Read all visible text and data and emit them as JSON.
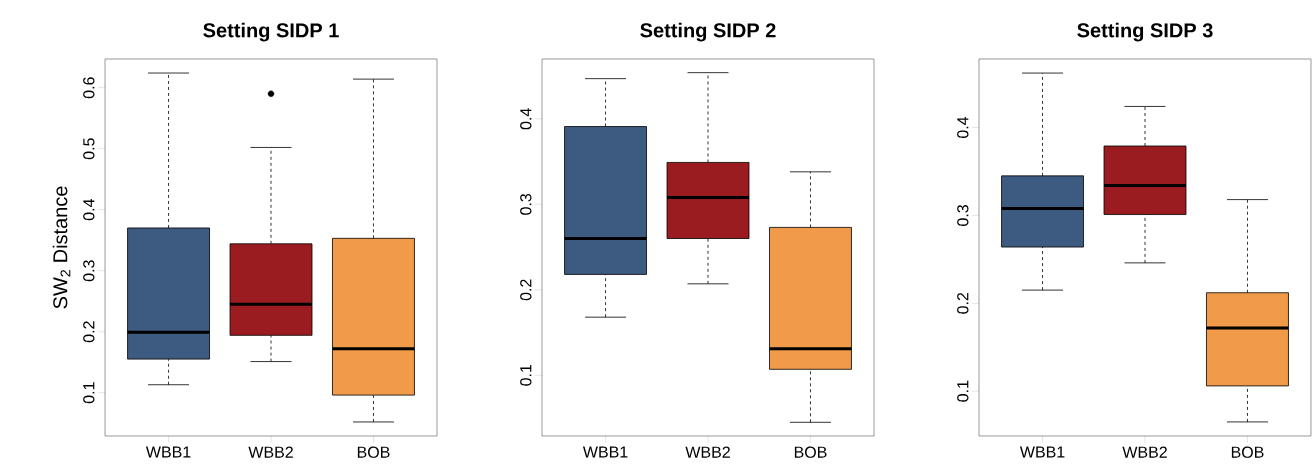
{
  "chart_data": [
    {
      "type": "box",
      "title": "Setting SIDP 1",
      "ylabel": "SW$_{2}$  Distance",
      "categories": [
        "WBB1",
        "WBB2",
        "BOB"
      ],
      "colors": [
        "#3d5a80",
        "#9b1c20",
        "#f09a4a"
      ],
      "boxes": [
        {
          "low": 0.113,
          "q1": 0.155,
          "median": 0.199,
          "q3": 0.37,
          "high": 0.624
        },
        {
          "low": 0.151,
          "q1": 0.194,
          "median": 0.245,
          "q3": 0.344,
          "high": 0.502,
          "outliers": [
            0.59
          ]
        },
        {
          "low": 0.052,
          "q1": 0.096,
          "median": 0.172,
          "q3": 0.353,
          "high": 0.614
        }
      ],
      "ylim": [
        0.029,
        0.647
      ],
      "yticks": [
        0.1,
        0.2,
        0.3,
        0.4,
        0.5,
        0.6
      ]
    },
    {
      "type": "box",
      "title": "Setting SIDP 2",
      "categories": [
        "WBB1",
        "WBB2",
        "BOB"
      ],
      "colors": [
        "#3d5a80",
        "#9b1c20",
        "#f09a4a"
      ],
      "boxes": [
        {
          "low": 0.168,
          "q1": 0.218,
          "median": 0.26,
          "q3": 0.391,
          "high": 0.447
        },
        {
          "low": 0.207,
          "q1": 0.26,
          "median": 0.308,
          "q3": 0.349,
          "high": 0.454
        },
        {
          "low": 0.045,
          "q1": 0.107,
          "median": 0.131,
          "q3": 0.273,
          "high": 0.338
        }
      ],
      "ylim": [
        0.029,
        0.47
      ],
      "yticks": [
        0.1,
        0.2,
        0.3,
        0.4
      ]
    },
    {
      "type": "box",
      "title": "Setting SIDP 3",
      "categories": [
        "WBB1",
        "WBB2",
        "BOB"
      ],
      "colors": [
        "#3d5a80",
        "#9b1c20",
        "#f09a4a"
      ],
      "boxes": [
        {
          "low": 0.215,
          "q1": 0.264,
          "median": 0.308,
          "q3": 0.345,
          "high": 0.462
        },
        {
          "low": 0.246,
          "q1": 0.301,
          "median": 0.334,
          "q3": 0.379,
          "high": 0.424
        },
        {
          "low": 0.065,
          "q1": 0.106,
          "median": 0.172,
          "q3": 0.212,
          "high": 0.318
        }
      ],
      "ylim": [
        0.049,
        0.478
      ],
      "yticks": [
        0.1,
        0.2,
        0.3,
        0.4
      ]
    }
  ]
}
